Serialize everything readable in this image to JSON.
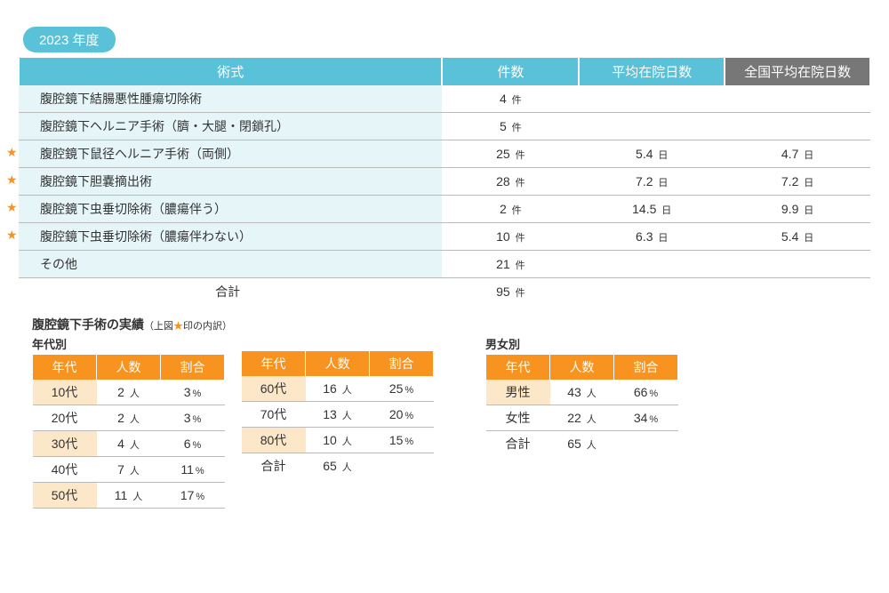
{
  "year_badge": "2023 年度",
  "main": {
    "headers": {
      "procedure": "術式",
      "cases": "件数",
      "avg_days": "平均在院日数",
      "national_avg": "全国平均在院日数"
    },
    "unit_cases": "件",
    "unit_days": "日",
    "rows": [
      {
        "star": false,
        "proc": "腹腔鏡下結腸悪性腫瘍切除術",
        "cases": "4",
        "avg": "",
        "nat": ""
      },
      {
        "star": false,
        "proc": "腹腔鏡下ヘルニア手術（臍・大腿・閉鎖孔）",
        "cases": "5",
        "avg": "",
        "nat": ""
      },
      {
        "star": true,
        "proc": "腹腔鏡下鼠径ヘルニア手術（両側）",
        "cases": "25",
        "avg": "5.4",
        "nat": "4.7"
      },
      {
        "star": true,
        "proc": "腹腔鏡下胆嚢摘出術",
        "cases": "28",
        "avg": "7.2",
        "nat": "7.2"
      },
      {
        "star": true,
        "proc": "腹腔鏡下虫垂切除術（膿瘍伴う）",
        "cases": "2",
        "avg": "14.5",
        "nat": "9.9"
      },
      {
        "star": true,
        "proc": "腹腔鏡下虫垂切除術（膿瘍伴わない）",
        "cases": "10",
        "avg": "6.3",
        "nat": "5.4"
      },
      {
        "star": false,
        "proc": "その他",
        "cases": "21",
        "avg": "",
        "nat": ""
      }
    ],
    "total_label": "合計",
    "total_cases": "95"
  },
  "sub_title_main": "腹腔鏡下手術の実績",
  "sub_title_paren": "（上図★印の内訳）",
  "age_label": "年代別",
  "gender_label": "男女別",
  "sm_headers": {
    "age": "年代",
    "count": "人数",
    "ratio": "割合"
  },
  "unit_people": "人",
  "unit_pct": "%",
  "age_left": [
    {
      "label": "10代",
      "count": "2",
      "ratio": "3"
    },
    {
      "label": "20代",
      "count": "2",
      "ratio": "3"
    },
    {
      "label": "30代",
      "count": "4",
      "ratio": "6"
    },
    {
      "label": "40代",
      "count": "7",
      "ratio": "11"
    },
    {
      "label": "50代",
      "count": "11",
      "ratio": "17"
    }
  ],
  "age_right": [
    {
      "label": "60代",
      "count": "16",
      "ratio": "25"
    },
    {
      "label": "70代",
      "count": "13",
      "ratio": "20"
    },
    {
      "label": "80代",
      "count": "10",
      "ratio": "15"
    }
  ],
  "age_total_label": "合計",
  "age_total_count": "65",
  "gender": [
    {
      "label": "男性",
      "count": "43",
      "ratio": "66"
    },
    {
      "label": "女性",
      "count": "22",
      "ratio": "34"
    }
  ],
  "gender_total_label": "合計",
  "gender_total_count": "65",
  "colors": {
    "teal": "#59c1d8",
    "teal_light": "#e6f5f8",
    "orange": "#f7931e",
    "orange_light": "#fde7c9",
    "gray": "#777",
    "border": "#bbb",
    "text": "#333",
    "bg": "#ffffff"
  }
}
